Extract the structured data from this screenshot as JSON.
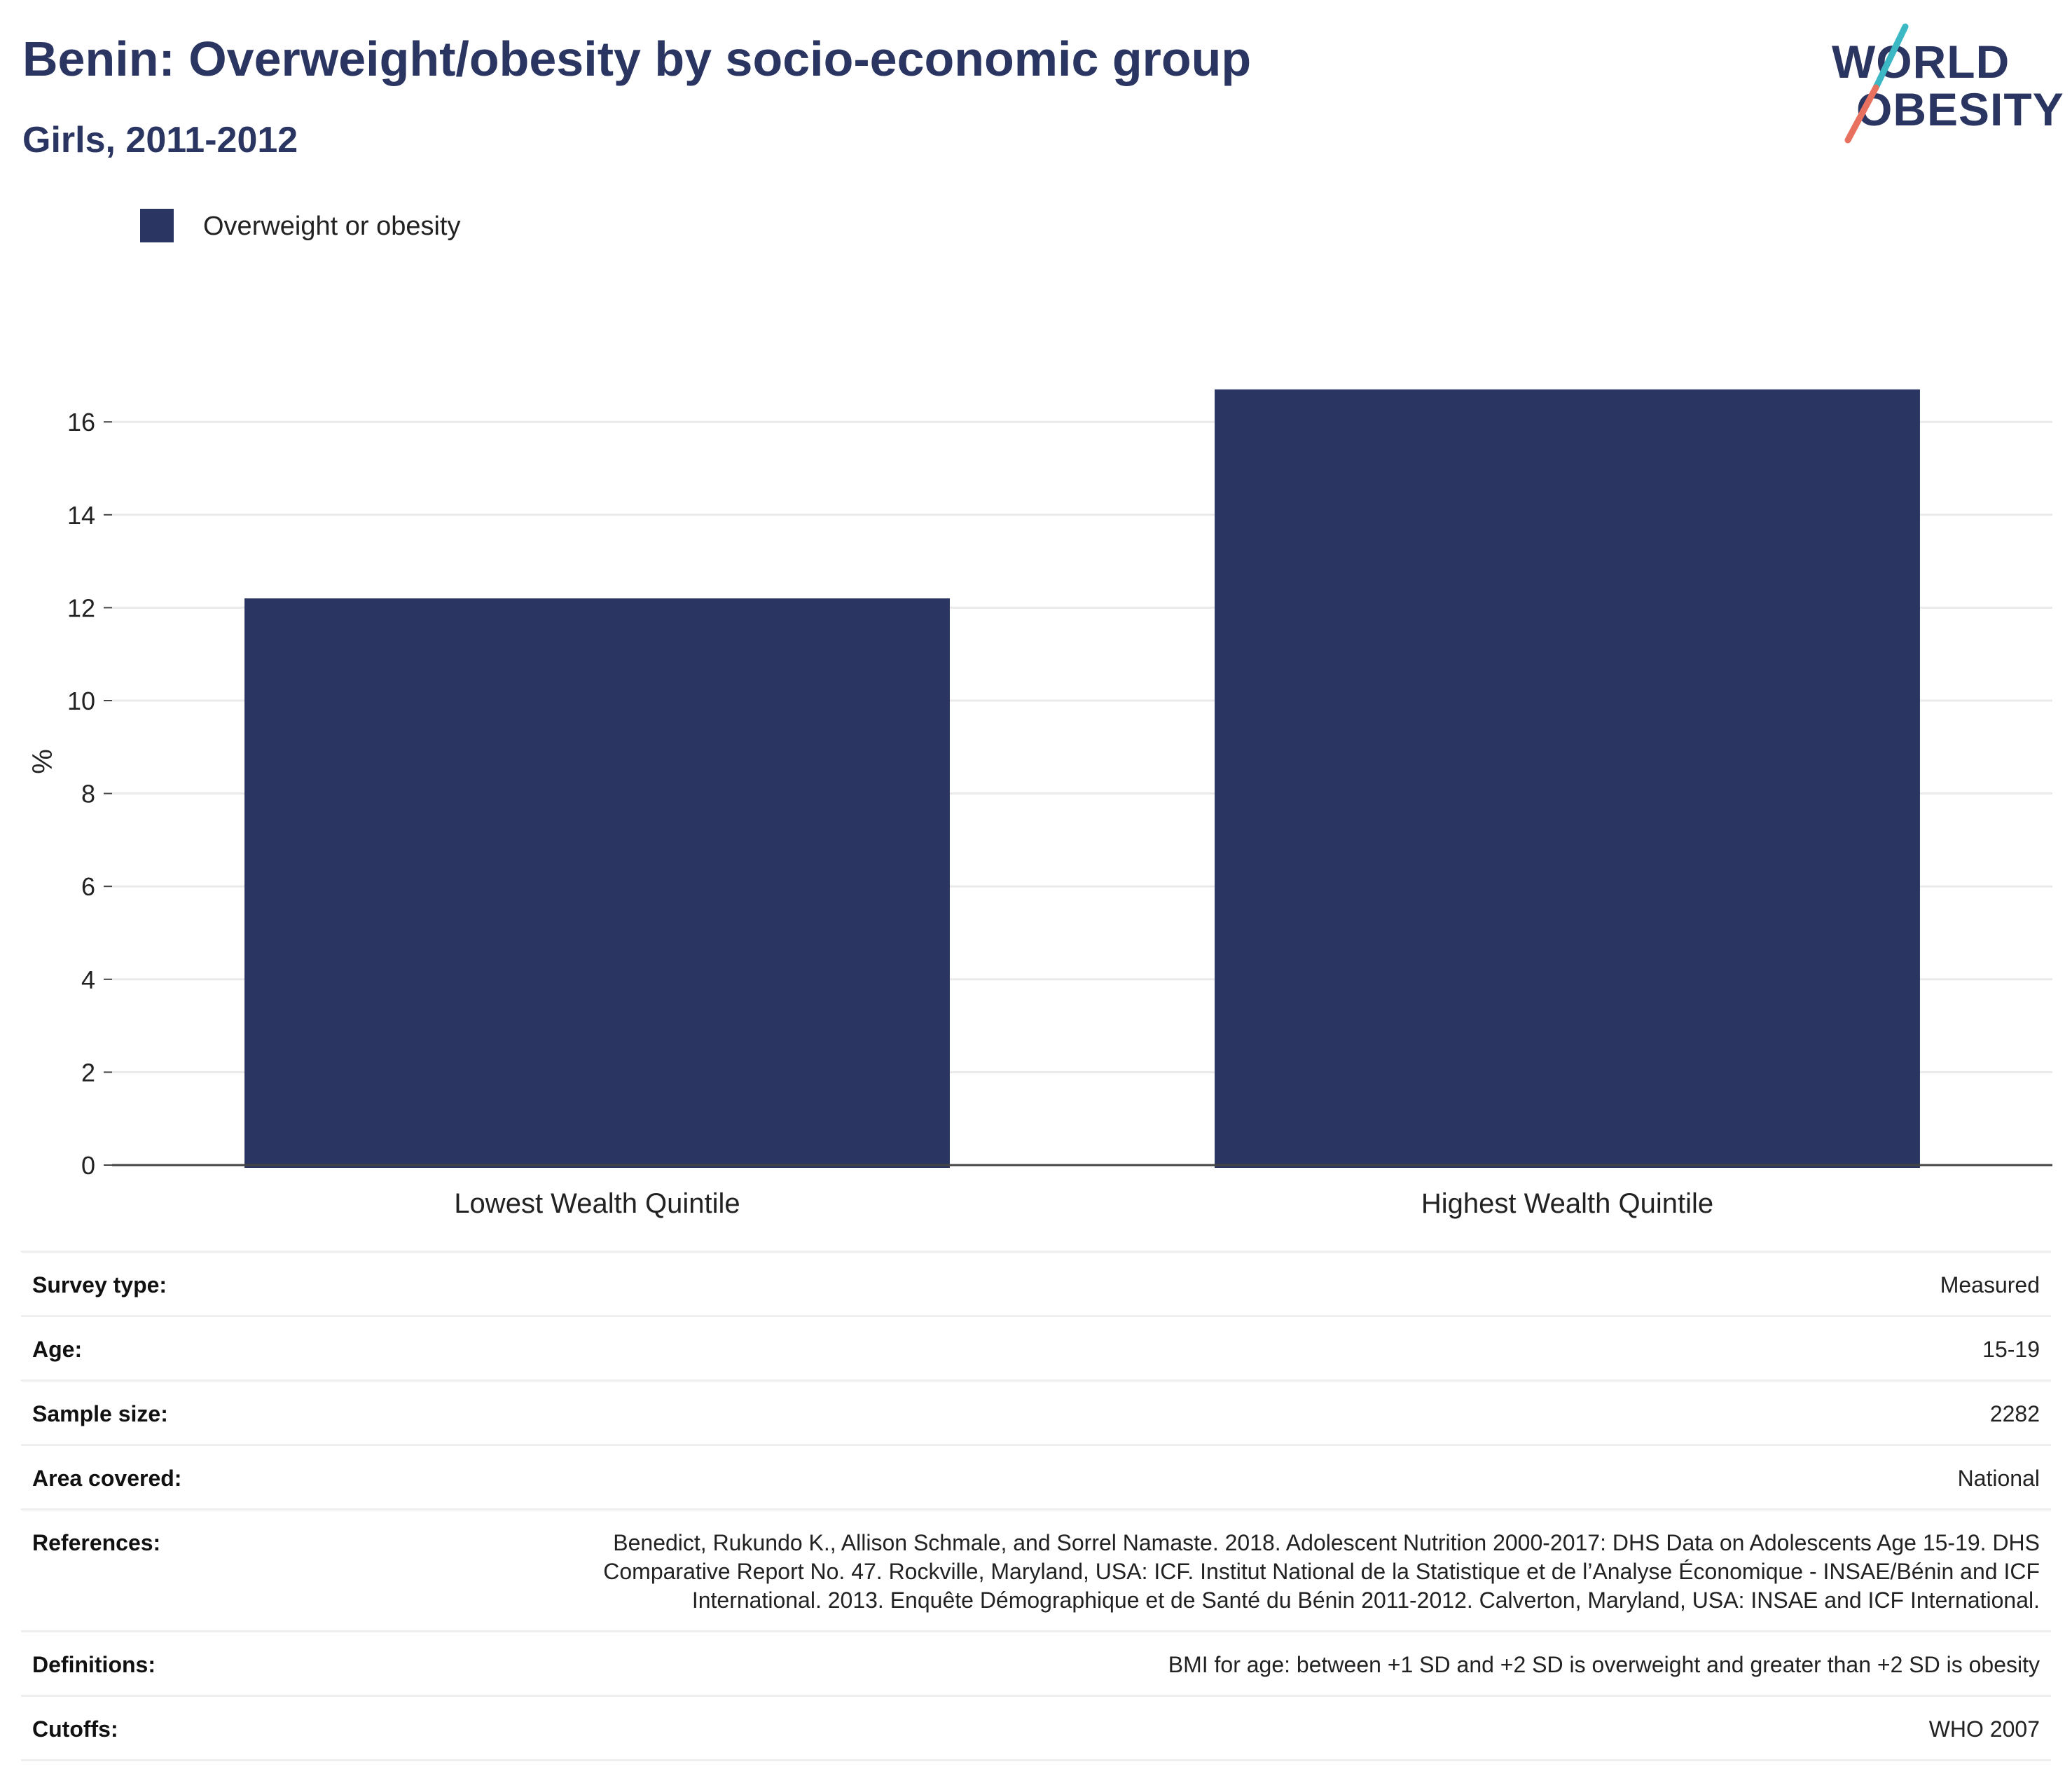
{
  "header": {
    "title": "Benin: Overweight/obesity by socio-economic group",
    "subtitle": "Girls, 2011-2012"
  },
  "logo": {
    "line1": "WORLD",
    "line2": "OBESITY",
    "colors": {
      "text": "#2a3561",
      "slash_top": "#3bb8c4",
      "slash_bottom": "#e8705f"
    }
  },
  "legend": {
    "label": "Overweight or obesity",
    "color": "#2a3561",
    "placement": "top-left"
  },
  "chart_data": {
    "type": "bar",
    "categories": [
      "Lowest Wealth Quintile",
      "Highest Wealth Quintile"
    ],
    "series": [
      {
        "name": "Overweight or obesity",
        "values": [
          12.2,
          16.7
        ],
        "color": "#2a3561"
      }
    ],
    "ylabel": "%",
    "xlabel": "",
    "ylim": [
      0,
      18.0
    ],
    "yticks": [
      0,
      2,
      4,
      6,
      8,
      10,
      12,
      14,
      16
    ],
    "grid": true
  },
  "info": [
    {
      "key": "Survey type:",
      "value": "Measured"
    },
    {
      "key": "Age:",
      "value": "15-19"
    },
    {
      "key": "Sample size:",
      "value": "2282"
    },
    {
      "key": "Area covered:",
      "value": "National"
    },
    {
      "key": "References:",
      "value": "Benedict, Rukundo K., Allison Schmale, and Sorrel Namaste. 2018. Adolescent Nutrition 2000-2017: DHS Data on Adolescents Age 15-19. DHS Comparative Report No. 47. Rockville, Maryland, USA: ICF. Institut National de la Statistique et de l’Analyse Économique - INSAE/Bénin and ICF International. 2013. Enquête Démographique et de Santé du Bénin 2011-2012. Calverton, Maryland, USA: INSAE and ICF International."
    },
    {
      "key": "Definitions:",
      "value": "BMI for age: between +1 SD and +2 SD is overweight and greater than +2 SD is obesity"
    },
    {
      "key": "Cutoffs:",
      "value": "WHO 2007"
    }
  ]
}
